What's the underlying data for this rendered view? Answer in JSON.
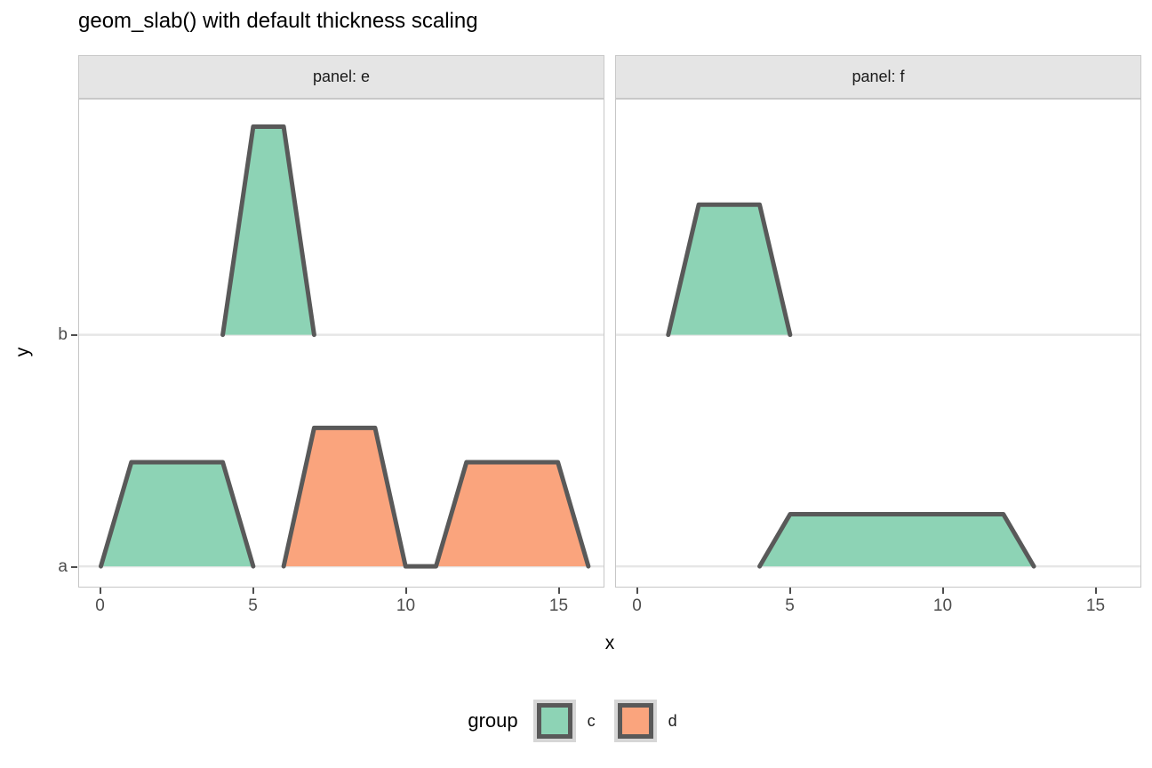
{
  "title": "geom_slab() with default thickness scaling",
  "axes": {
    "x_title": "x",
    "y_title": "y",
    "x_tick_labels": [
      "0",
      "5",
      "10",
      "15"
    ],
    "y_tick_labels": [
      "b",
      "a"
    ]
  },
  "panels": [
    {
      "id": "e",
      "label": "panel: e"
    },
    {
      "id": "f",
      "label": "panel: f"
    }
  ],
  "legend": {
    "title": "group",
    "items": [
      {
        "label": "c",
        "color": "#8DD3B5"
      },
      {
        "label": "d",
        "color": "#FAA47D"
      }
    ]
  },
  "colors": {
    "slab_outline": "#595959",
    "group_c": "#8DD3B5",
    "group_d": "#FAA47D",
    "gridline": "#E6E6E6",
    "strip_bg": "#E5E5E5",
    "tick_text": "#4D4D4D",
    "panel_border": "#C6C6C6",
    "legend_key_bg": "#D6D6D6"
  },
  "chart_data": {
    "type": "area",
    "title": "geom_slab() with default thickness scaling",
    "xlabel": "x",
    "ylabel": "y",
    "x_range": [
      0,
      16
    ],
    "x_ticks": [
      0,
      5,
      10,
      15
    ],
    "y_categories_top_to_bottom": [
      "b",
      "a"
    ],
    "facets": [
      "e",
      "f"
    ],
    "legend_title": "group",
    "groups": [
      "c",
      "d"
    ],
    "grid": "horizontal-only",
    "legend_position": "bottom-center",
    "thickness_note": "thickness normalized so global max = 1 (slab height 1.0 = 0.9 of row height)",
    "slabs": [
      {
        "panel": "e",
        "y": "b",
        "group": "c",
        "points": [
          [
            4,
            0
          ],
          [
            5,
            1.0
          ],
          [
            6,
            1.0
          ],
          [
            7,
            0
          ]
        ]
      },
      {
        "panel": "e",
        "y": "a",
        "group": "c",
        "points": [
          [
            0,
            0
          ],
          [
            1,
            0.5
          ],
          [
            4,
            0.5
          ],
          [
            5,
            0
          ]
        ]
      },
      {
        "panel": "e",
        "y": "a",
        "group": "d",
        "points": [
          [
            6,
            0
          ],
          [
            7,
            0.665
          ],
          [
            9,
            0.665
          ],
          [
            10,
            0
          ],
          [
            11,
            0
          ],
          [
            12,
            0.5
          ],
          [
            15,
            0.5
          ],
          [
            16,
            0
          ]
        ]
      },
      {
        "panel": "f",
        "y": "b",
        "group": "c",
        "points": [
          [
            1,
            0
          ],
          [
            2,
            0.625
          ],
          [
            4,
            0.625
          ],
          [
            5,
            0
          ]
        ]
      },
      {
        "panel": "f",
        "y": "a",
        "group": "c",
        "points": [
          [
            4,
            0
          ],
          [
            5,
            0.25
          ],
          [
            12,
            0.25
          ],
          [
            13,
            0
          ]
        ]
      }
    ]
  }
}
